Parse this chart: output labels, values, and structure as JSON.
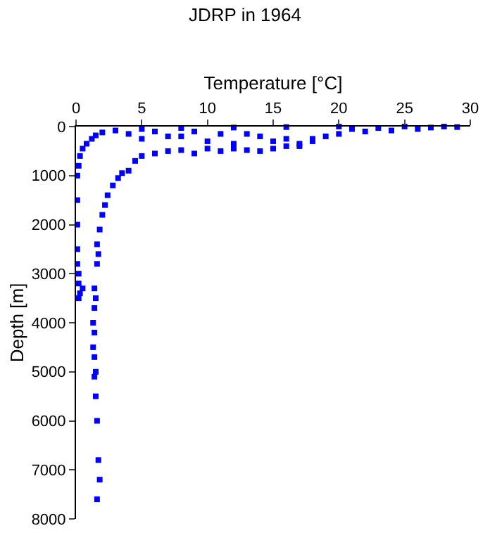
{
  "chart_data": {
    "type": "scatter",
    "title": "JDRP in 1964",
    "xlabel": "Temperature [°C]",
    "ylabel": "Depth [m]",
    "xlim": [
      0,
      30
    ],
    "xticks": [
      0,
      5,
      10,
      15,
      20,
      25,
      30
    ],
    "ylim": [
      8000,
      0
    ],
    "yticks": [
      0,
      1000,
      2000,
      3000,
      4000,
      5000,
      6000,
      7000,
      8000
    ],
    "legend": false,
    "marker": "square",
    "series": [
      {
        "color": "#0000ff",
        "x": [
          0.2,
          0.3,
          0.2,
          0.5,
          0.2,
          0.1,
          0.1,
          0.1,
          0.1,
          0.1,
          0.2,
          0.3,
          0.5,
          0.8,
          1.2,
          1.5,
          2,
          3,
          5,
          8,
          12,
          16,
          20,
          25,
          28,
          29,
          1.6,
          1.8,
          1.7,
          1.6,
          1.5,
          1.4,
          1.5,
          1.4,
          1.3,
          1.4,
          1.3,
          1.4,
          1.5,
          1.4,
          1.6,
          1.7,
          1.6,
          1.8,
          2,
          2.2,
          2.4,
          2.8,
          3.2,
          3.5,
          4,
          4.5,
          5,
          6,
          7,
          8,
          9,
          10,
          11,
          12,
          13,
          14,
          15,
          16,
          17,
          18,
          19,
          20,
          5,
          8,
          10,
          12,
          15,
          17,
          13,
          22,
          24,
          26,
          6,
          9,
          11,
          14,
          16,
          18,
          21,
          23,
          27,
          4,
          7
        ],
        "values": [
          3500,
          3400,
          3200,
          3300,
          3000,
          2800,
          2500,
          2000,
          1500,
          1000,
          800,
          600,
          450,
          350,
          250,
          180,
          120,
          80,
          50,
          30,
          20,
          10,
          0,
          0,
          0,
          10,
          7600,
          7200,
          6800,
          6000,
          5500,
          5100,
          5000,
          4700,
          4500,
          4200,
          4000,
          3700,
          3500,
          3300,
          2800,
          2600,
          2400,
          2100,
          1800,
          1600,
          1400,
          1200,
          1050,
          950,
          900,
          700,
          600,
          550,
          500,
          480,
          550,
          450,
          500,
          450,
          480,
          500,
          450,
          400,
          350,
          250,
          200,
          150,
          250,
          200,
          300,
          350,
          300,
          400,
          150,
          100,
          80,
          50,
          100,
          100,
          150,
          200,
          250,
          300,
          50,
          30,
          20,
          150,
          200
        ]
      }
    ]
  }
}
